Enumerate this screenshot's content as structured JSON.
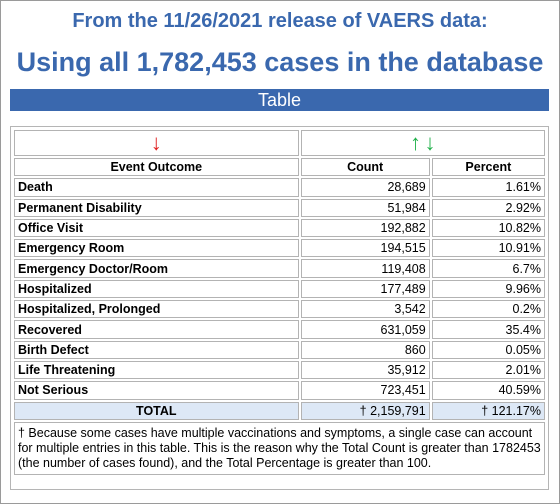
{
  "header": {
    "subtitle": "From the 11/26/2021 release of VAERS data:",
    "title": "Using all 1,782,453 cases in the database",
    "section_label": "Table"
  },
  "table": {
    "sort_arrows": {
      "outcome": "↓",
      "count_up": "↑",
      "count_down": "↓"
    },
    "columns": [
      "Event Outcome",
      "Count",
      "Percent"
    ],
    "rows": [
      {
        "outcome": "Death",
        "count": "28,689",
        "percent": "1.61%"
      },
      {
        "outcome": "Permanent Disability",
        "count": "51,984",
        "percent": "2.92%"
      },
      {
        "outcome": "Office Visit",
        "count": "192,882",
        "percent": "10.82%"
      },
      {
        "outcome": "Emergency Room",
        "count": "194,515",
        "percent": "10.91%"
      },
      {
        "outcome": "Emergency Doctor/Room",
        "count": "119,408",
        "percent": "6.7%"
      },
      {
        "outcome": "Hospitalized",
        "count": "177,489",
        "percent": "9.96%"
      },
      {
        "outcome": "Hospitalized, Prolonged",
        "count": "3,542",
        "percent": "0.2%"
      },
      {
        "outcome": "Recovered",
        "count": "631,059",
        "percent": "35.4%"
      },
      {
        "outcome": "Birth Defect",
        "count": "860",
        "percent": "0.05%"
      },
      {
        "outcome": "Life Threatening",
        "count": "35,912",
        "percent": "2.01%"
      },
      {
        "outcome": "Not Serious",
        "count": "723,451",
        "percent": "40.59%"
      }
    ],
    "total": {
      "label": "TOTAL",
      "count": "† 2,159,791",
      "percent": "† 121.17%"
    },
    "footnote": "† Because some cases have multiple vaccinations and symptoms, a single case can account for multiple entries in this table. This is the reason why the Total Count is greater than 1782453 (the number of cases found), and the Total Percentage is greater than 100."
  },
  "colors": {
    "title": "#3a68ae",
    "bar": "#3a68ae",
    "arrow_red": "#e02020",
    "arrow_green": "#22b14c",
    "total_row_bg": "#dde8f6"
  }
}
